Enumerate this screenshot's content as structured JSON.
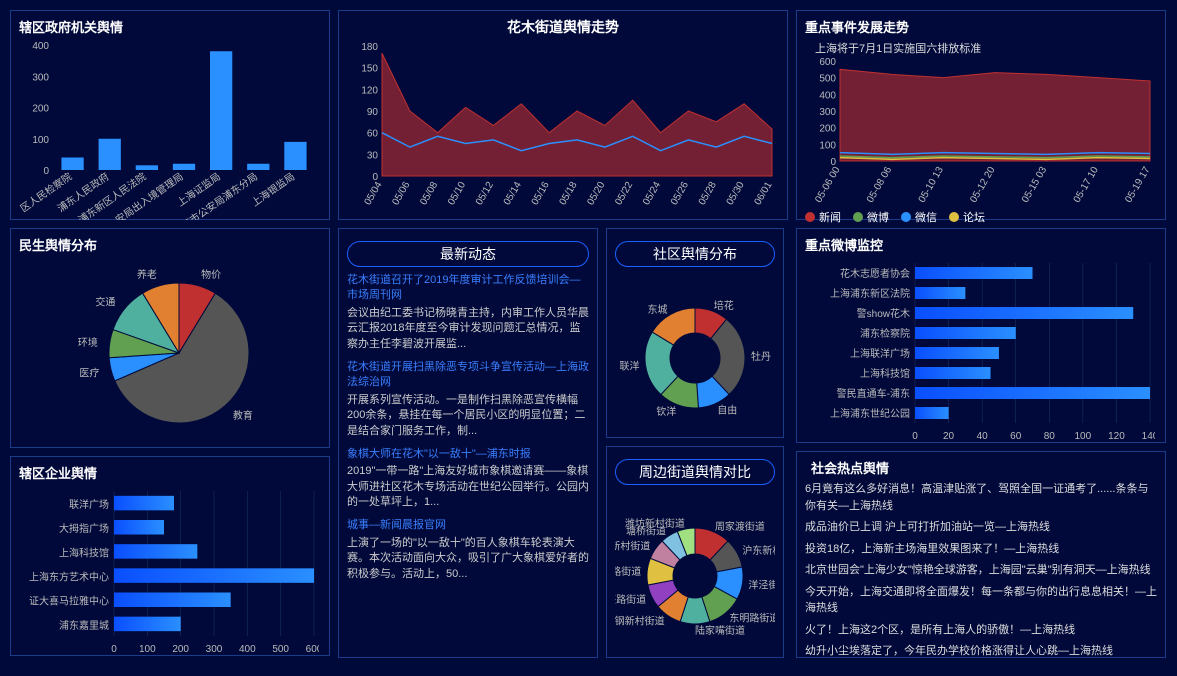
{
  "colors": {
    "blue": "#2a8fff",
    "darkblue": "#0a4fff",
    "red": "#c03030",
    "teal": "#50b0a0",
    "green": "#60a050",
    "orange": "#e08030",
    "purple": "#9040c0",
    "grey": "#888"
  },
  "gov": {
    "title": "辖区政府机关舆情",
    "categories": [
      "区人民检察院",
      "浦东人民政府",
      "浦东新区人民法院",
      "安局出入境管理局",
      "上海证监局",
      "上海市公安局浦东分局",
      "上海银监局"
    ],
    "values": [
      40,
      100,
      15,
      20,
      380,
      20,
      90
    ],
    "ylim": [
      0,
      400
    ],
    "ystep": 100
  },
  "trend": {
    "title": "花木街道舆情走势",
    "x": [
      "05/04",
      "05/06",
      "05/08",
      "05/10",
      "05/12",
      "05/14",
      "05/16",
      "05/18",
      "05/20",
      "05/22",
      "05/24",
      "05/26",
      "05/28",
      "05/30",
      "06/01"
    ],
    "series": [
      {
        "name": "red",
        "color": "#c03030",
        "fill": "rgba(192,48,48,0.6)",
        "values": [
          170,
          90,
          60,
          95,
          70,
          100,
          60,
          90,
          70,
          105,
          60,
          90,
          75,
          100,
          65
        ]
      },
      {
        "name": "blue",
        "color": "#2a8fff",
        "values": [
          60,
          40,
          55,
          45,
          50,
          35,
          45,
          50,
          40,
          55,
          35,
          50,
          40,
          55,
          45
        ]
      }
    ],
    "ylim": [
      0,
      180
    ],
    "ystep": 30
  },
  "event": {
    "title": "重点事件发展走势",
    "subtitle": "上海将于7月1日实施国六排放标准",
    "x": [
      "05-06 00",
      "05-08 06",
      "05-10 13",
      "05-12 20",
      "05-15 03",
      "05-17 10",
      "05-19 17"
    ],
    "series": [
      {
        "name": "新闻",
        "color": "#c03030",
        "fill": "rgba(192,48,48,0.6)",
        "values": [
          550,
          520,
          500,
          530,
          520,
          500,
          480
        ]
      },
      {
        "name": "微博",
        "color": "#60a050",
        "values": [
          30,
          20,
          30,
          25,
          20,
          30,
          25
        ]
      },
      {
        "name": "微信",
        "color": "#2a8fff",
        "values": [
          50,
          40,
          50,
          45,
          40,
          50,
          45
        ]
      },
      {
        "name": "论坛",
        "color": "#e0c040",
        "values": [
          20,
          10,
          20,
          15,
          10,
          20,
          15
        ]
      }
    ],
    "ylim": [
      0,
      600
    ],
    "ystep": 100
  },
  "people": {
    "title": "民生舆情分布",
    "slices": [
      {
        "label": "物价",
        "value": 8,
        "color": "#c03030"
      },
      {
        "label": "教育",
        "value": 55,
        "color": "#555"
      },
      {
        "label": "医疗",
        "value": 5,
        "color": "#2a8fff"
      },
      {
        "label": "环境",
        "value": 6,
        "color": "#60a050"
      },
      {
        "label": "交通",
        "value": 10,
        "color": "#50b0a0"
      },
      {
        "label": "养老",
        "value": 8,
        "color": "#e08030"
      }
    ]
  },
  "enterprise": {
    "title": "辖区企业舆情",
    "categories": [
      "联洋广场",
      "大拇指广场",
      "上海科技馆",
      "上海东方艺术中心",
      "证大喜马拉雅中心",
      "浦东嘉里城"
    ],
    "values": [
      180,
      150,
      250,
      600,
      350,
      200
    ],
    "xlim": [
      0,
      600
    ],
    "xstep": 100
  },
  "news": {
    "title": "最新动态",
    "items": [
      {
        "title": "花木街道召开了2019年度审计工作反馈培训会—市场周刊网",
        "body": "会议由纪工委书记杨晓青主持，内审工作人员华晨云汇报2018年度至今审计发现问题汇总情况，监察办主任李碧波开展监..."
      },
      {
        "title": "花木街道开展扫黑除恶专项斗争宣传活动—上海政法综治网",
        "body": "开展系列宣传活动。一是制作扫黑除恶宣传横幅200余条，悬挂在每一个居民小区的明显位置；二是结合家门服务工作，制..."
      },
      {
        "title": "象棋大师在花木\"以一敌十\"—浦东时报",
        "body": "2019\"一带一路\"上海友好城市象棋邀请赛——象棋大师进社区花木专场活动在世纪公园举行。公园内的一处草坪上，1..."
      },
      {
        "title": "城事—新闻晨报官网",
        "body": "上演了一场的\"以一敌十\"的百人象棋车轮表演大赛。本次活动面向大众，吸引了广大象棋爱好者的积极参与。活动上，50..."
      }
    ]
  },
  "community": {
    "title": "社区舆情分布",
    "slices": [
      {
        "label": "培花",
        "value": 10,
        "color": "#c03030"
      },
      {
        "label": "牡丹",
        "value": 25,
        "color": "#555"
      },
      {
        "label": "自由",
        "value": 10,
        "color": "#2a8fff"
      },
      {
        "label": "钦洋",
        "value": 12,
        "color": "#60a050"
      },
      {
        "label": "联洋",
        "value": 20,
        "color": "#50b0a0"
      },
      {
        "label": "东城",
        "value": 15,
        "color": "#e08030"
      }
    ]
  },
  "compare": {
    "title": "周边街道舆情对比",
    "slices": [
      {
        "label": "周家渡街道",
        "value": 12,
        "color": "#c03030"
      },
      {
        "label": "沪东新村街",
        "value": 10,
        "color": "#555"
      },
      {
        "label": "洋泾街道",
        "value": 11,
        "color": "#2a8fff"
      },
      {
        "label": "东明路街道",
        "value": 12,
        "color": "#60a050"
      },
      {
        "label": "陆家嘴街道",
        "value": 10,
        "color": "#50b0a0"
      },
      {
        "label": "钢新村街道",
        "value": 9,
        "color": "#e08030"
      },
      {
        "label": "兴路街道",
        "value": 8,
        "color": "#9040c0"
      },
      {
        "label": "头路街道",
        "value": 9,
        "color": "#e0c040"
      },
      {
        "label": "斯新村街道",
        "value": 7,
        "color": "#c080a0"
      },
      {
        "label": "塘桥街道",
        "value": 6,
        "color": "#80c0e0"
      },
      {
        "label": "潍坊新村街道",
        "value": 6,
        "color": "#a0e080"
      }
    ]
  },
  "weibo": {
    "title": "重点微博监控",
    "categories": [
      "花木志愿者协会",
      "上海浦东新区法院",
      "警show花木",
      "浦东检察院",
      "上海联洋广场",
      "上海科技馆",
      "警民直通车-浦东",
      "上海浦东世纪公园"
    ],
    "values": [
      70,
      30,
      130,
      60,
      50,
      45,
      140,
      20
    ],
    "xlim": [
      0,
      140
    ],
    "xstep": 20
  },
  "hot": {
    "title": "社会热点舆情",
    "items": [
      "6月竟有这么多好消息！高温津贴涨了、驾照全国一证通考了......条条与你有关—上海热线",
      "成品油价已上调 沪上可打折加油站一览—上海热线",
      "投资18亿，上海新主场海里效果图来了！—上海热线",
      "北京世园会\"上海少女\"惊艳全球游客，上海园\"云巢\"别有洞天—上海热线",
      "今天开始，上海交通即将全面爆发！每一条都与你的出行息息相关！—上海热线",
      "火了！上海这2个区，是所有上海人的骄傲！—上海热线",
      "幼升小尘埃落定了，今年民办学校价格涨得让人心跳—上海热线"
    ]
  }
}
